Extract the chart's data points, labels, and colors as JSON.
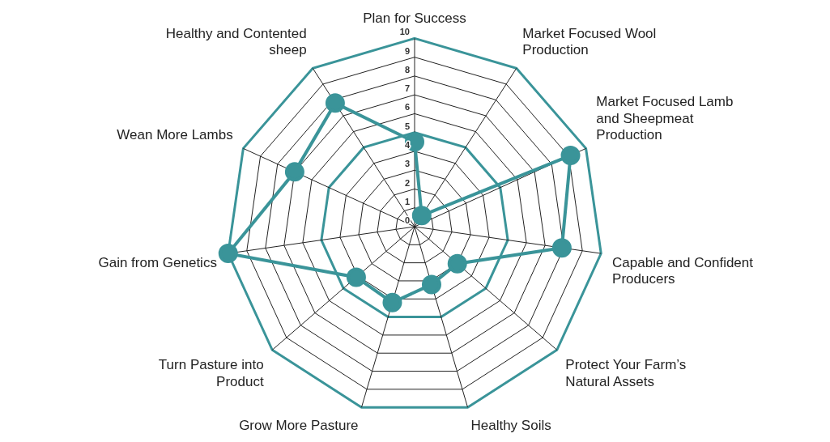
{
  "chart_data": {
    "type": "radar",
    "categories": [
      "Plan for Success",
      "Market Focused Wool Production",
      "Market Focused Lamb and Sheepmeat Production",
      "Capable and Confident Producers",
      "Protect Your Farm’s Natural Assets",
      "Healthy Soils",
      "Grow More Pasture",
      "Turn Pasture into Product",
      "Gain from Genetics",
      "Wean More Lambs",
      "Healthy and Contented sheep"
    ],
    "series": [
      {
        "color": "#3a9499",
        "values": [
          4.5,
          0.7,
          9.1,
          7.9,
          3.0,
          3.2,
          4.2,
          4.1,
          10,
          7.0,
          7.8
        ]
      }
    ],
    "ylim": [
      0,
      10
    ],
    "yticks": [
      0,
      1,
      2,
      3,
      4,
      5,
      6,
      7,
      8,
      9,
      10
    ],
    "grid": true,
    "marker": "circle",
    "legend": false
  }
}
